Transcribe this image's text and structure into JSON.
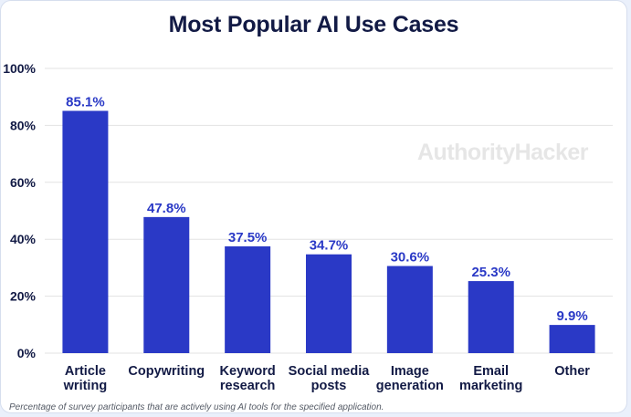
{
  "title": "Most Popular AI Use Cases",
  "watermark": "AuthorityHacker",
  "footnote": "Percentage of survey participants that are actively using AI tools for the specified application.",
  "colors": {
    "bar": "#2a39c6",
    "label": "#2a39c6",
    "axis_text": "#121a45",
    "grid": "#e3e3e3"
  },
  "chart_data": {
    "type": "bar",
    "title": "Most Popular AI Use Cases",
    "categories": [
      [
        "Article",
        "writing"
      ],
      [
        "Copywriting"
      ],
      [
        "Keyword",
        "research"
      ],
      [
        "Social media",
        "posts"
      ],
      [
        "Image",
        "generation"
      ],
      [
        "Email",
        "marketing"
      ],
      [
        "Other"
      ]
    ],
    "values": [
      85.1,
      47.8,
      37.5,
      34.7,
      30.6,
      25.3,
      9.9
    ],
    "value_labels": [
      "85.1%",
      "47.8%",
      "37.5%",
      "34.7%",
      "30.6%",
      "25.3%",
      "9.9%"
    ],
    "ylim": [
      0,
      100
    ],
    "yticks": [
      0,
      20,
      40,
      60,
      80,
      100
    ],
    "ytick_labels": [
      "0%",
      "20%",
      "40%",
      "60%",
      "80%",
      "100%"
    ],
    "grid": true,
    "legend": "none"
  }
}
